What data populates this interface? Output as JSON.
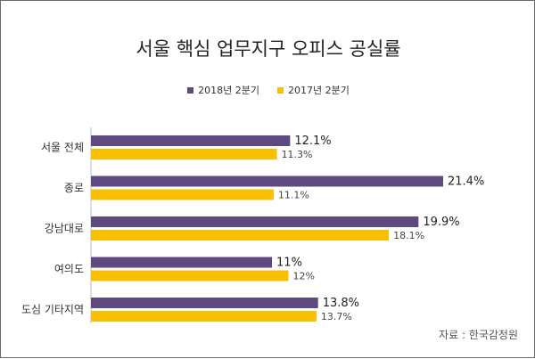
{
  "chart_data": {
    "type": "bar",
    "orientation": "horizontal",
    "title": "서울 핵심 업무지구 오피스 공실률",
    "categories": [
      "서울 전체",
      "종로",
      "강남대로",
      "여의도",
      "도심 기타지역"
    ],
    "series": [
      {
        "name": "2018년 2분기",
        "color": "#5e4a7e",
        "values": [
          12.1,
          21.4,
          19.9,
          11,
          13.8
        ],
        "labels": [
          "12.1%",
          "21.4%",
          "19.9%",
          "11%",
          "13.8%"
        ]
      },
      {
        "name": "2017년 2분기",
        "color": "#f8c000",
        "values": [
          11.3,
          11.1,
          18.1,
          12,
          13.7
        ],
        "labels": [
          "11.3%",
          "11.1%",
          "18.1%",
          "12%",
          "13.7%"
        ]
      }
    ],
    "xlim": [
      0,
      25
    ],
    "grid": false,
    "legend_position": "top-center",
    "source": "자료 : 한국감정원"
  }
}
